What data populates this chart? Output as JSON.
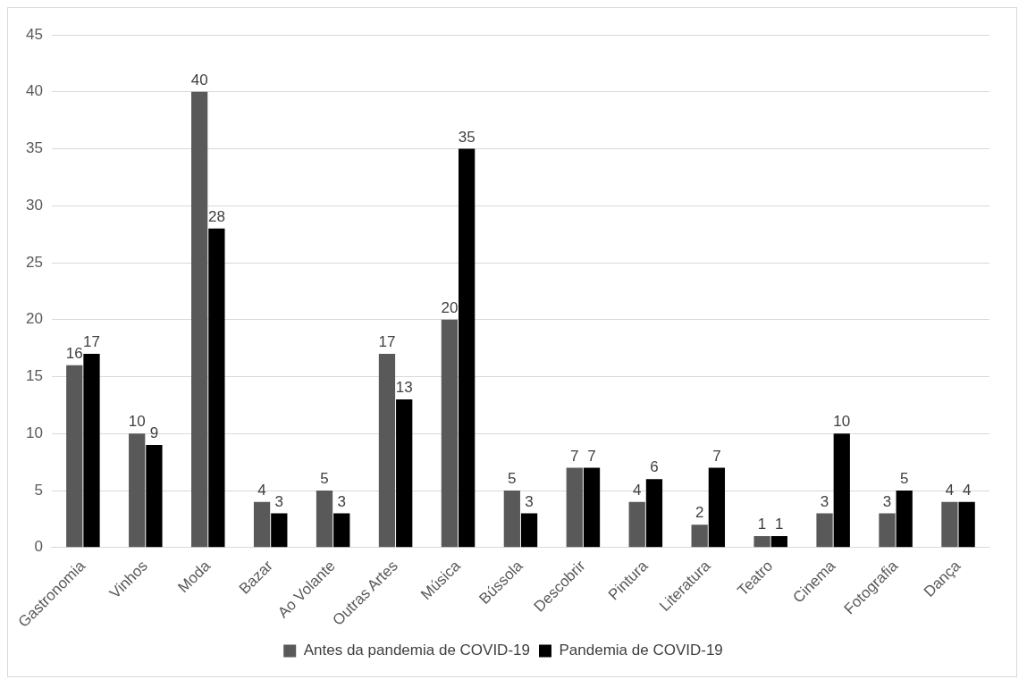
{
  "chart_data": {
    "type": "bar",
    "categories": [
      "Gastronomia",
      "Vinhos",
      "Moda",
      "Bazar",
      "Ao Volante",
      "Outras Artes",
      "Música",
      "Bússola",
      "Descobrir",
      "Pintura",
      "Literatura",
      "Teatro",
      "Cinema",
      "Fotografia",
      "Dança"
    ],
    "series": [
      {
        "name": "Antes da pandemia de COVID-19",
        "color": "#595959",
        "values": [
          16,
          10,
          40,
          4,
          5,
          17,
          20,
          5,
          7,
          4,
          2,
          1,
          3,
          3,
          4
        ]
      },
      {
        "name": "Pandemia de COVID-19",
        "color": "#000000",
        "values": [
          17,
          9,
          28,
          3,
          3,
          13,
          35,
          3,
          7,
          6,
          7,
          1,
          10,
          5,
          4
        ]
      }
    ],
    "ylim": [
      0,
      45
    ],
    "yticks": [
      0,
      5,
      10,
      15,
      20,
      25,
      30,
      35,
      40,
      45
    ],
    "grid": "y",
    "legend": "bottom",
    "data_labels": true
  }
}
